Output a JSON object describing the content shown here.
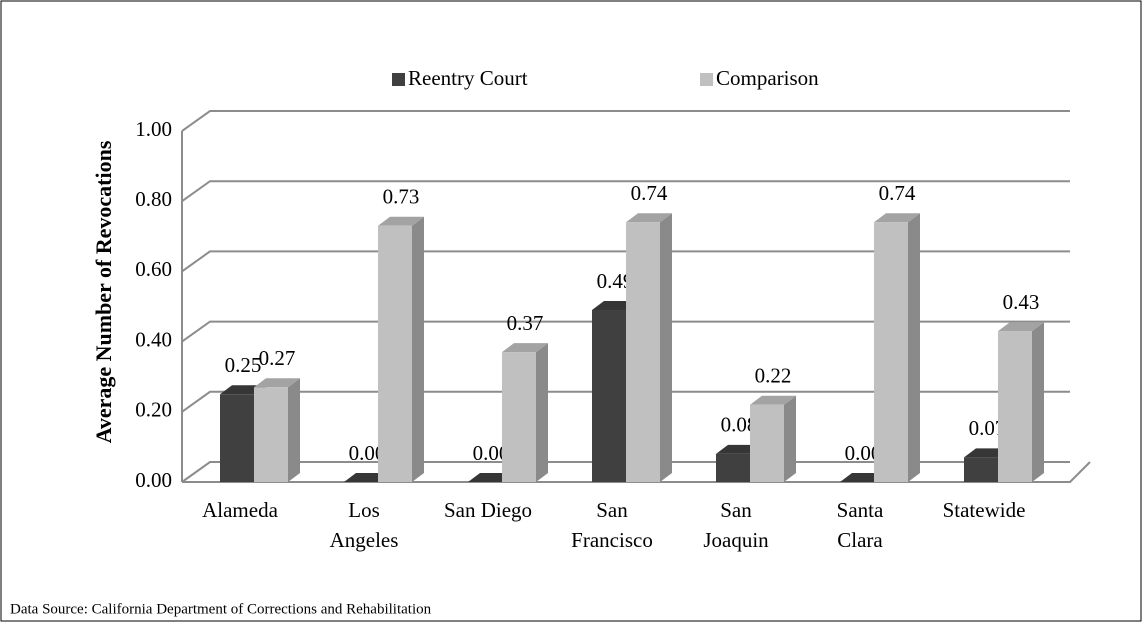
{
  "chart_data": {
    "type": "bar3d",
    "y_axis_label": "Average Number of Revocations",
    "source": "Data Source: California Department of Corrections and Rehabilitation",
    "categories": [
      "Alameda",
      "Los\nAngeles",
      "San Diego",
      "San\nFrancisco",
      "San\nJoaquin",
      "Santa\nClara",
      "Statewide"
    ],
    "series": [
      {
        "name": "Reentry Court",
        "color": "#404040",
        "values": [
          0.25,
          0,
          0,
          0.49,
          0.08,
          0,
          0.07
        ],
        "value_labels": [
          "0.25",
          "0.00",
          "0.00",
          "0.49",
          "0.08",
          "0.00",
          "0.07"
        ]
      },
      {
        "name": "Comparison",
        "color": "#c0c0c0",
        "values": [
          0.27,
          0.73,
          0.37,
          0.74,
          0.22,
          0.74,
          0.43
        ],
        "value_labels": [
          "0.27",
          "0.73",
          "0.37",
          "0.74",
          "0.22",
          "0.74",
          "0.43"
        ]
      }
    ],
    "ylim": [
      0,
      1
    ],
    "yticks": [
      {
        "value": 0,
        "label": "0.00"
      },
      {
        "value": 0.2,
        "label": "0.20"
      },
      {
        "value": 0.4,
        "label": "0.40"
      },
      {
        "value": 0.6,
        "label": "0.60"
      },
      {
        "value": 0.8,
        "label": "0.80"
      },
      {
        "value": 1,
        "label": "1.00"
      }
    ],
    "grid": true,
    "legend": "top"
  }
}
